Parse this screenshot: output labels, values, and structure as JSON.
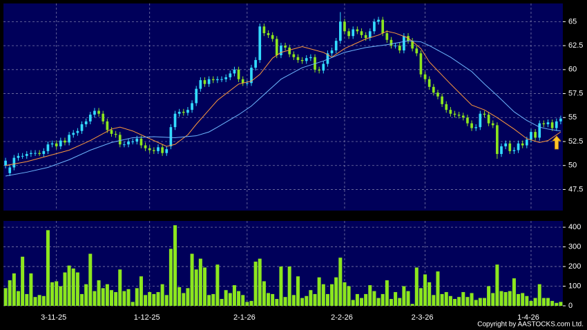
{
  "chart_data": [
    {
      "type": "candlestick",
      "xlim": [
        -0.5,
        131.5
      ],
      "xticks": [
        {
          "value": 12,
          "label": "3-11-25"
        },
        {
          "value": 34,
          "label": "1-12-25"
        },
        {
          "value": 57,
          "label": "2-1-26"
        },
        {
          "value": 80,
          "label": "2-2-26"
        },
        {
          "value": 99,
          "label": "2-3-26"
        },
        {
          "value": 124,
          "label": "1-4-26"
        }
      ],
      "ylim": [
        45.3,
        66.9
      ],
      "yticks": [
        47.5,
        50,
        52.5,
        55,
        57.5,
        60,
        62.5,
        65
      ],
      "grid": true,
      "up_color": "#33dcff",
      "down_color": "#8ce61e",
      "open": [
        50.0,
        49.2,
        49.8,
        50.8,
        51.0,
        51.0,
        51.2,
        51.3,
        51.3,
        51.2,
        51.5,
        52.2,
        52.3,
        52.0,
        52.6,
        52.4,
        53.2,
        53.4,
        53.6,
        54.3,
        54.6,
        55.3,
        55.7,
        55.4,
        54.6,
        53.7,
        53.3,
        53.2,
        52.2,
        52.2,
        52.5,
        52.5,
        52.8,
        52.1,
        51.8,
        51.6,
        51.5,
        51.9,
        51.3,
        52.0,
        54.0,
        55.4,
        55.6,
        55.5,
        55.8,
        56.5,
        58.0,
        58.9,
        58.5,
        59.0,
        58.9,
        59.0,
        59.0,
        59.2,
        59.6,
        60.0,
        59.0,
        58.6,
        58.6,
        60.2,
        61.0,
        64.5,
        63.8,
        63.6,
        63.2,
        61.5,
        62.5,
        62.3,
        61.6,
        61.3,
        61.0,
        60.9,
        61.2,
        61.3,
        60.0,
        59.9,
        60.6,
        61.7,
        62.0,
        63.0,
        65.0,
        64.0,
        63.5,
        64.2,
        64.0,
        63.6,
        63.3,
        64.0,
        65.0,
        65.2,
        63.8,
        63.1,
        62.5,
        62.5,
        62.0,
        63.5,
        63.0,
        62.2,
        61.7,
        59.5,
        59.0,
        58.2,
        57.6,
        57.2,
        56.4,
        55.8,
        55.4,
        55.3,
        55.2,
        55.0,
        54.4,
        53.9,
        54.0,
        55.4,
        55.3,
        54.4,
        54.2,
        51.2,
        52.0,
        52.3,
        51.5,
        51.6,
        52.3,
        52.1,
        52.7,
        53.5,
        52.9,
        54.4,
        54.3,
        54.5,
        53.9,
        54.6
      ],
      "high": [
        50.8,
        50.1,
        51.1,
        51.3,
        51.3,
        51.5,
        51.6,
        51.6,
        51.6,
        51.8,
        52.5,
        52.6,
        52.6,
        52.9,
        52.9,
        53.5,
        53.7,
        53.9,
        54.6,
        54.9,
        55.6,
        56.0,
        56.0,
        55.7,
        54.9,
        54.0,
        53.6,
        53.5,
        52.5,
        52.8,
        52.8,
        53.1,
        53.1,
        52.4,
        52.1,
        51.9,
        52.2,
        52.2,
        52.0,
        54.3,
        55.7,
        55.9,
        55.9,
        56.1,
        56.8,
        58.3,
        59.2,
        59.2,
        59.3,
        59.3,
        59.3,
        59.3,
        59.5,
        59.9,
        60.3,
        60.3,
        59.3,
        58.9,
        60.5,
        61.3,
        64.8,
        64.8,
        64.1,
        63.9,
        63.5,
        62.8,
        62.8,
        62.6,
        61.9,
        61.6,
        61.3,
        61.5,
        61.6,
        61.6,
        60.3,
        60.9,
        62.0,
        62.3,
        63.3,
        66.0,
        65.3,
        64.3,
        64.5,
        64.5,
        64.3,
        63.9,
        64.3,
        65.3,
        65.5,
        65.5,
        64.1,
        63.4,
        62.8,
        62.8,
        63.8,
        63.8,
        63.3,
        62.5,
        62.0,
        59.8,
        59.3,
        58.5,
        57.9,
        57.5,
        56.7,
        56.1,
        55.7,
        55.6,
        55.5,
        55.3,
        54.7,
        54.3,
        55.7,
        55.7,
        55.6,
        54.7,
        54.5,
        52.3,
        52.6,
        52.6,
        51.9,
        52.6,
        52.6,
        53.0,
        53.8,
        53.8,
        54.7,
        54.7,
        54.8,
        54.8,
        54.9,
        55.2
      ],
      "low": [
        49.7,
        48.9,
        49.5,
        50.5,
        50.7,
        50.7,
        50.9,
        51.0,
        51.0,
        50.9,
        51.2,
        51.9,
        51.7,
        51.7,
        52.1,
        52.1,
        52.9,
        53.1,
        53.3,
        54.0,
        54.3,
        55.0,
        55.1,
        54.3,
        53.4,
        53.0,
        52.9,
        51.9,
        51.9,
        51.9,
        52.2,
        52.2,
        51.8,
        51.5,
        51.3,
        51.2,
        51.2,
        51.0,
        51.0,
        51.7,
        53.7,
        55.1,
        55.2,
        55.2,
        55.5,
        56.2,
        57.7,
        58.2,
        58.2,
        58.6,
        58.6,
        58.7,
        58.7,
        58.9,
        59.3,
        58.7,
        58.3,
        58.3,
        58.3,
        59.9,
        60.7,
        63.5,
        63.3,
        62.9,
        61.2,
        61.2,
        62.0,
        61.3,
        61.0,
        60.7,
        60.6,
        60.6,
        60.9,
        59.7,
        59.6,
        59.6,
        60.3,
        61.4,
        61.7,
        62.7,
        63.7,
        63.2,
        63.2,
        63.7,
        63.3,
        63.0,
        63.0,
        63.7,
        64.7,
        63.5,
        62.8,
        62.2,
        62.2,
        61.7,
        61.7,
        62.7,
        61.9,
        61.4,
        59.2,
        58.7,
        57.9,
        57.3,
        56.9,
        56.1,
        55.5,
        55.1,
        55.0,
        54.9,
        54.7,
        54.1,
        53.6,
        53.6,
        53.7,
        55.0,
        54.1,
        53.9,
        50.7,
        50.9,
        51.7,
        51.2,
        51.2,
        51.3,
        51.8,
        51.8,
        52.4,
        52.6,
        52.6,
        54.0,
        54.0,
        53.6,
        53.6,
        54.3
      ],
      "close": [
        50.5,
        49.8,
        50.8,
        51.0,
        51.0,
        51.2,
        51.3,
        51.3,
        51.2,
        51.5,
        52.2,
        52.3,
        52.0,
        52.6,
        52.4,
        53.2,
        53.4,
        53.6,
        54.3,
        54.6,
        55.3,
        55.7,
        55.4,
        54.6,
        53.7,
        53.3,
        53.2,
        52.2,
        52.2,
        52.5,
        52.5,
        52.8,
        52.1,
        51.8,
        51.6,
        51.5,
        51.9,
        51.3,
        51.7,
        54.0,
        55.4,
        55.6,
        55.5,
        55.8,
        56.5,
        58.0,
        58.9,
        58.5,
        59.0,
        58.9,
        59.0,
        59.0,
        59.2,
        59.6,
        60.0,
        59.0,
        58.6,
        58.6,
        60.2,
        61.0,
        64.5,
        63.8,
        63.6,
        63.2,
        61.5,
        62.5,
        62.3,
        61.6,
        61.3,
        61.0,
        60.9,
        61.2,
        61.3,
        60.0,
        59.9,
        60.6,
        61.7,
        62.0,
        63.0,
        65.0,
        64.0,
        63.5,
        64.2,
        64.0,
        63.6,
        63.3,
        64.0,
        65.0,
        65.2,
        63.8,
        63.1,
        62.5,
        62.5,
        62.0,
        63.5,
        63.0,
        62.2,
        61.7,
        59.5,
        59.0,
        58.2,
        57.6,
        57.2,
        56.4,
        55.8,
        55.4,
        55.3,
        55.2,
        55.0,
        54.4,
        53.9,
        54.0,
        55.4,
        55.3,
        54.4,
        54.2,
        51.2,
        52.0,
        52.3,
        51.5,
        51.6,
        52.3,
        52.1,
        52.7,
        53.5,
        52.9,
        54.4,
        54.3,
        54.5,
        53.9,
        54.6,
        54.9
      ],
      "ma_lines": [
        {
          "color": "#ff9a3c",
          "x": [
            0,
            5,
            10,
            15,
            20,
            25,
            27,
            30,
            35,
            38,
            40,
            43,
            45,
            48,
            50,
            55,
            58,
            60,
            63,
            65,
            70,
            75,
            77,
            80,
            85,
            88,
            90,
            92,
            95,
            98,
            100,
            105,
            110,
            113,
            116,
            120,
            123,
            126,
            128,
            131
          ],
          "values": [
            50.0,
            50.4,
            51.0,
            51.6,
            52.6,
            53.8,
            54.0,
            53.6,
            52.6,
            52.0,
            52.2,
            53.2,
            54.3,
            55.8,
            56.8,
            58.5,
            58.8,
            59.5,
            61.2,
            61.8,
            62.4,
            61.8,
            61.3,
            62.2,
            63.2,
            63.6,
            64.0,
            63.8,
            63.3,
            62.2,
            60.8,
            58.5,
            56.3,
            55.8,
            55.0,
            53.8,
            52.8,
            52.4,
            52.6,
            53.5
          ]
        },
        {
          "color": "#6fb8ff",
          "x": [
            0,
            5,
            10,
            15,
            20,
            25,
            30,
            35,
            40,
            45,
            48,
            50,
            55,
            58,
            60,
            63,
            65,
            70,
            75,
            80,
            85,
            90,
            95,
            98,
            100,
            105,
            110,
            113,
            116,
            120,
            123,
            126,
            128,
            131
          ],
          "values": [
            48.9,
            49.3,
            49.8,
            50.6,
            51.6,
            52.4,
            52.9,
            53.0,
            52.9,
            53.1,
            53.5,
            54.0,
            55.3,
            56.2,
            57.0,
            58.2,
            59.0,
            60.2,
            60.9,
            61.8,
            62.3,
            62.6,
            63.0,
            62.9,
            62.5,
            61.3,
            59.8,
            58.5,
            57.3,
            55.6,
            54.7,
            54.0,
            53.8,
            53.6
          ]
        }
      ]
    },
    {
      "type": "bar",
      "color": "#8ce61e",
      "ylim": [
        0,
        432
      ],
      "yticks": [
        0,
        100,
        200,
        300,
        400
      ],
      "grid": true,
      "values": [
        90,
        130,
        165,
        75,
        250,
        60,
        165,
        45,
        55,
        50,
        385,
        120,
        125,
        100,
        170,
        205,
        190,
        170,
        60,
        110,
        265,
        75,
        130,
        90,
        110,
        80,
        70,
        185,
        75,
        85,
        20,
        90,
        150,
        55,
        70,
        60,
        70,
        110,
        55,
        290,
        410,
        95,
        65,
        90,
        265,
        185,
        240,
        195,
        55,
        60,
        210,
        35,
        80,
        65,
        105,
        75,
        55,
        20,
        25,
        225,
        240,
        125,
        65,
        60,
        35,
        200,
        45,
        200,
        55,
        150,
        40,
        50,
        80,
        60,
        145,
        110,
        60,
        110,
        145,
        245,
        120,
        100,
        30,
        60,
        40,
        60,
        105,
        75,
        40,
        60,
        130,
        35,
        70,
        40,
        100,
        75,
        10,
        195,
        90,
        160,
        120,
        55,
        175,
        60,
        70,
        50,
        35,
        45,
        70,
        45,
        65,
        30,
        40,
        40,
        100,
        65,
        210,
        75,
        70,
        75,
        140,
        60,
        65,
        50,
        25,
        40,
        110,
        40,
        40,
        25,
        15,
        20
      ]
    }
  ],
  "source": "Copyright by AASTOCKS.com Ltd."
}
